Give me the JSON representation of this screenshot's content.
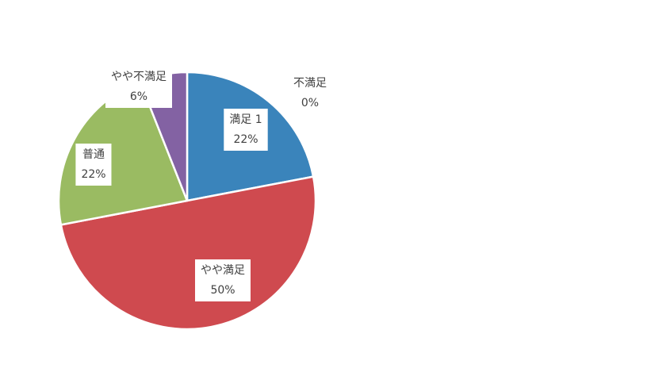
{
  "chart_data": {
    "type": "pie",
    "title": "",
    "legend": "none",
    "start_angle_deg": 0,
    "direction": "clockwise",
    "slices": [
      {
        "label": "満足 1",
        "value": 22,
        "value_label": "22%",
        "color": "#3a84bb"
      },
      {
        "label": "やや満足",
        "value": 50,
        "value_label": "50%",
        "color": "#cf4a4f"
      },
      {
        "label": "普通",
        "value": 22,
        "value_label": "22%",
        "color": "#9abb62"
      },
      {
        "label": "やや不満足",
        "value": 6,
        "value_label": "6%",
        "color": "#8362a3"
      },
      {
        "label": "不満足",
        "value": 0,
        "value_label": "0%",
        "color": "#7f7f7f"
      }
    ]
  }
}
